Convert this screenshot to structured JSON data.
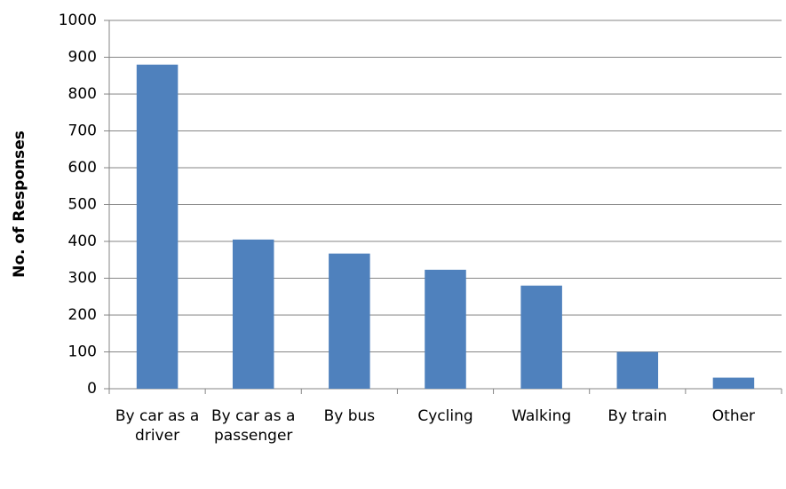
{
  "chart_data": {
    "type": "bar",
    "ylabel": "No. of Responses",
    "categories": [
      "By car as a driver",
      "By car as a passenger",
      "By bus",
      "Cycling",
      "Walking",
      "By train",
      "Other"
    ],
    "values": [
      880,
      405,
      367,
      323,
      280,
      100,
      30
    ],
    "color": "#4f81bd",
    "ylim": [
      0,
      1000
    ],
    "yticks": [
      0,
      100,
      200,
      300,
      400,
      500,
      600,
      700,
      800,
      900,
      1000
    ],
    "grid": true
  }
}
